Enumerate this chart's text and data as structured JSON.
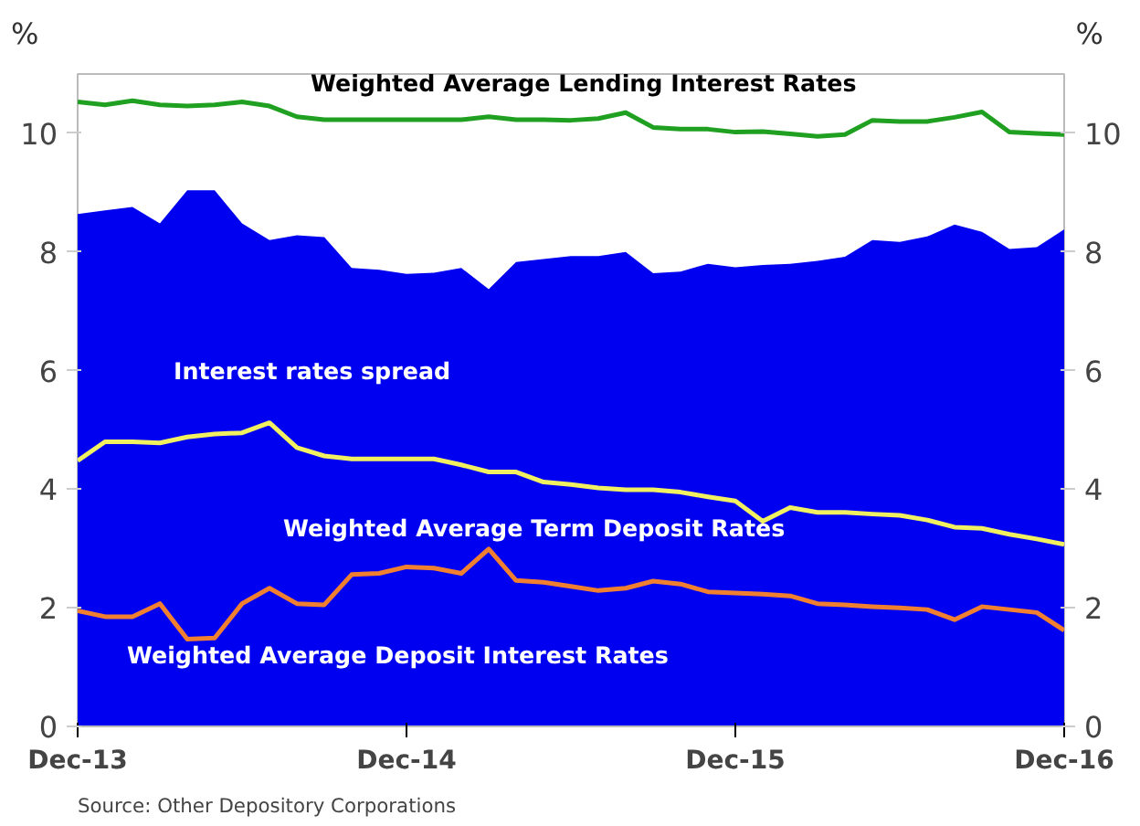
{
  "chart_data": {
    "type": "line",
    "categories": [
      "Dec-13",
      null,
      null,
      null,
      null,
      null,
      null,
      null,
      null,
      null,
      null,
      null,
      "Dec-14",
      null,
      null,
      null,
      null,
      null,
      null,
      null,
      null,
      null,
      null,
      null,
      "Dec-15",
      null,
      null,
      null,
      null,
      null,
      null,
      null,
      null,
      null,
      null,
      null,
      "Dec-16"
    ],
    "series": [
      {
        "name": "Interest rates spread",
        "type": "area",
        "color": "#0000f0",
        "values": [
          8.64,
          8.7,
          8.76,
          8.48,
          9.04,
          9.04,
          8.48,
          8.2,
          8.28,
          8.25,
          7.73,
          7.7,
          7.63,
          7.65,
          7.73,
          7.37,
          7.83,
          7.88,
          7.93,
          7.93,
          8.0,
          7.64,
          7.67,
          7.8,
          7.74,
          7.78,
          7.8,
          7.85,
          7.92,
          8.2,
          8.17,
          8.26,
          8.46,
          8.34,
          8.05,
          8.08,
          8.38
        ]
      },
      {
        "name": "Weighted Average Lending Interest Rates",
        "color": "#20a020",
        "values": [
          10.53,
          10.48,
          10.55,
          10.48,
          10.46,
          10.48,
          10.53,
          10.46,
          10.28,
          10.23,
          10.23,
          10.23,
          10.23,
          10.23,
          10.23,
          10.28,
          10.23,
          10.23,
          10.22,
          10.25,
          10.35,
          10.1,
          10.07,
          10.07,
          10.02,
          10.03,
          9.99,
          9.95,
          9.98,
          10.22,
          10.2,
          10.2,
          10.27,
          10.36,
          10.02,
          10.0,
          9.98
        ]
      },
      {
        "name": "Weighted Average Term Deposit Rates",
        "color": "#f0f060",
        "values": [
          4.48,
          4.8,
          4.8,
          4.78,
          4.88,
          4.93,
          4.95,
          5.12,
          4.7,
          4.56,
          4.51,
          4.51,
          4.51,
          4.51,
          4.41,
          4.29,
          4.29,
          4.12,
          4.08,
          4.02,
          3.99,
          3.99,
          3.95,
          3.87,
          3.8,
          3.46,
          3.69,
          3.61,
          3.61,
          3.58,
          3.56,
          3.48,
          3.36,
          3.34,
          3.24,
          3.16,
          3.07
        ]
      },
      {
        "name": "Weighted Average Deposit Interest  Rates",
        "color": "#f08030",
        "values": [
          1.95,
          1.85,
          1.85,
          2.07,
          1.47,
          1.49,
          2.07,
          2.33,
          2.07,
          2.05,
          2.56,
          2.58,
          2.69,
          2.67,
          2.58,
          2.99,
          2.46,
          2.43,
          2.36,
          2.29,
          2.33,
          2.45,
          2.4,
          2.27,
          2.25,
          2.23,
          2.2,
          2.07,
          2.05,
          2.02,
          2.0,
          1.97,
          1.8,
          2.02,
          1.97,
          1.92,
          1.62
        ]
      }
    ],
    "ylabel": "%",
    "y2label": "%",
    "ylim": [
      0,
      11
    ],
    "yticks": [
      0,
      2,
      4,
      6,
      8,
      10
    ],
    "y2lim": [
      0,
      11
    ],
    "y2ticks": [
      0,
      2,
      4,
      6,
      8,
      10
    ],
    "annotations": [
      "Source: Other Depository Corporations"
    ],
    "grid": false
  }
}
